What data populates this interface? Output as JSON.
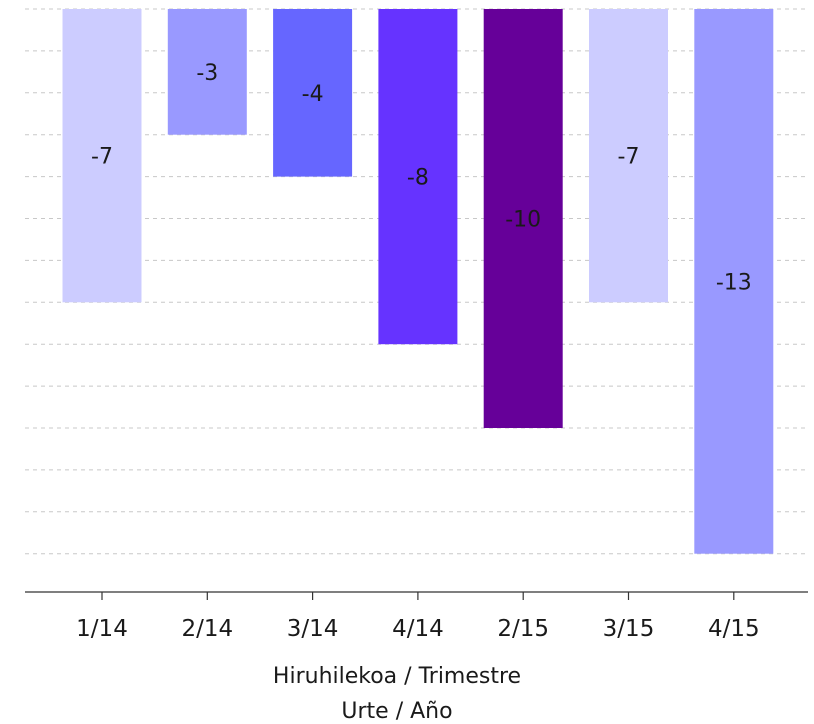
{
  "chart_data": {
    "type": "bar",
    "categories": [
      "1/14",
      "2/14",
      "3/14",
      "4/14",
      "2/15",
      "3/15",
      "4/15"
    ],
    "values": [
      -7,
      -3,
      -4,
      -8,
      -10,
      -7,
      -13
    ],
    "data_labels": [
      "-7",
      "-3",
      "-4",
      "-8",
      "-10",
      "-7",
      "-13"
    ],
    "bar_colors": [
      "#ccccff",
      "#9999ff",
      "#6666ff",
      "#6633ff",
      "#660099",
      "#ccccff",
      "#9999ff"
    ],
    "xlabel_line1": "Hiruhilekoa / Trimestre",
    "xlabel_line2": "Urte / Año",
    "ylabel": "",
    "ylim": [
      -14,
      0
    ],
    "grid": true,
    "legend": "none"
  }
}
